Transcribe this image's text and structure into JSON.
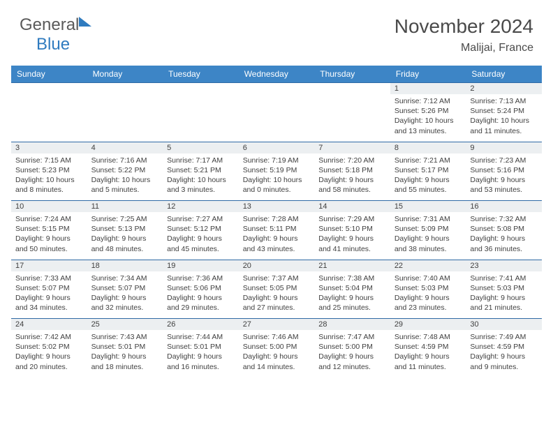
{
  "brand": {
    "part1": "General",
    "part2": "Blue"
  },
  "title": "November 2024",
  "location": "Malijai, France",
  "colors": {
    "header_bg": "#3d85c6",
    "header_text": "#ffffff",
    "daynum_bg": "#eceff1",
    "border": "#2f6aa5",
    "text": "#404040",
    "brand_gray": "#5a5a5a",
    "brand_blue": "#2f7bbf"
  },
  "weekdays": [
    "Sunday",
    "Monday",
    "Tuesday",
    "Wednesday",
    "Thursday",
    "Friday",
    "Saturday"
  ],
  "weeks": [
    [
      null,
      null,
      null,
      null,
      null,
      {
        "n": "1",
        "sr": "Sunrise: 7:12 AM",
        "ss": "Sunset: 5:26 PM",
        "dl": "Daylight: 10 hours and 13 minutes."
      },
      {
        "n": "2",
        "sr": "Sunrise: 7:13 AM",
        "ss": "Sunset: 5:24 PM",
        "dl": "Daylight: 10 hours and 11 minutes."
      }
    ],
    [
      {
        "n": "3",
        "sr": "Sunrise: 7:15 AM",
        "ss": "Sunset: 5:23 PM",
        "dl": "Daylight: 10 hours and 8 minutes."
      },
      {
        "n": "4",
        "sr": "Sunrise: 7:16 AM",
        "ss": "Sunset: 5:22 PM",
        "dl": "Daylight: 10 hours and 5 minutes."
      },
      {
        "n": "5",
        "sr": "Sunrise: 7:17 AM",
        "ss": "Sunset: 5:21 PM",
        "dl": "Daylight: 10 hours and 3 minutes."
      },
      {
        "n": "6",
        "sr": "Sunrise: 7:19 AM",
        "ss": "Sunset: 5:19 PM",
        "dl": "Daylight: 10 hours and 0 minutes."
      },
      {
        "n": "7",
        "sr": "Sunrise: 7:20 AM",
        "ss": "Sunset: 5:18 PM",
        "dl": "Daylight: 9 hours and 58 minutes."
      },
      {
        "n": "8",
        "sr": "Sunrise: 7:21 AM",
        "ss": "Sunset: 5:17 PM",
        "dl": "Daylight: 9 hours and 55 minutes."
      },
      {
        "n": "9",
        "sr": "Sunrise: 7:23 AM",
        "ss": "Sunset: 5:16 PM",
        "dl": "Daylight: 9 hours and 53 minutes."
      }
    ],
    [
      {
        "n": "10",
        "sr": "Sunrise: 7:24 AM",
        "ss": "Sunset: 5:15 PM",
        "dl": "Daylight: 9 hours and 50 minutes."
      },
      {
        "n": "11",
        "sr": "Sunrise: 7:25 AM",
        "ss": "Sunset: 5:13 PM",
        "dl": "Daylight: 9 hours and 48 minutes."
      },
      {
        "n": "12",
        "sr": "Sunrise: 7:27 AM",
        "ss": "Sunset: 5:12 PM",
        "dl": "Daylight: 9 hours and 45 minutes."
      },
      {
        "n": "13",
        "sr": "Sunrise: 7:28 AM",
        "ss": "Sunset: 5:11 PM",
        "dl": "Daylight: 9 hours and 43 minutes."
      },
      {
        "n": "14",
        "sr": "Sunrise: 7:29 AM",
        "ss": "Sunset: 5:10 PM",
        "dl": "Daylight: 9 hours and 41 minutes."
      },
      {
        "n": "15",
        "sr": "Sunrise: 7:31 AM",
        "ss": "Sunset: 5:09 PM",
        "dl": "Daylight: 9 hours and 38 minutes."
      },
      {
        "n": "16",
        "sr": "Sunrise: 7:32 AM",
        "ss": "Sunset: 5:08 PM",
        "dl": "Daylight: 9 hours and 36 minutes."
      }
    ],
    [
      {
        "n": "17",
        "sr": "Sunrise: 7:33 AM",
        "ss": "Sunset: 5:07 PM",
        "dl": "Daylight: 9 hours and 34 minutes."
      },
      {
        "n": "18",
        "sr": "Sunrise: 7:34 AM",
        "ss": "Sunset: 5:07 PM",
        "dl": "Daylight: 9 hours and 32 minutes."
      },
      {
        "n": "19",
        "sr": "Sunrise: 7:36 AM",
        "ss": "Sunset: 5:06 PM",
        "dl": "Daylight: 9 hours and 29 minutes."
      },
      {
        "n": "20",
        "sr": "Sunrise: 7:37 AM",
        "ss": "Sunset: 5:05 PM",
        "dl": "Daylight: 9 hours and 27 minutes."
      },
      {
        "n": "21",
        "sr": "Sunrise: 7:38 AM",
        "ss": "Sunset: 5:04 PM",
        "dl": "Daylight: 9 hours and 25 minutes."
      },
      {
        "n": "22",
        "sr": "Sunrise: 7:40 AM",
        "ss": "Sunset: 5:03 PM",
        "dl": "Daylight: 9 hours and 23 minutes."
      },
      {
        "n": "23",
        "sr": "Sunrise: 7:41 AM",
        "ss": "Sunset: 5:03 PM",
        "dl": "Daylight: 9 hours and 21 minutes."
      }
    ],
    [
      {
        "n": "24",
        "sr": "Sunrise: 7:42 AM",
        "ss": "Sunset: 5:02 PM",
        "dl": "Daylight: 9 hours and 20 minutes."
      },
      {
        "n": "25",
        "sr": "Sunrise: 7:43 AM",
        "ss": "Sunset: 5:01 PM",
        "dl": "Daylight: 9 hours and 18 minutes."
      },
      {
        "n": "26",
        "sr": "Sunrise: 7:44 AM",
        "ss": "Sunset: 5:01 PM",
        "dl": "Daylight: 9 hours and 16 minutes."
      },
      {
        "n": "27",
        "sr": "Sunrise: 7:46 AM",
        "ss": "Sunset: 5:00 PM",
        "dl": "Daylight: 9 hours and 14 minutes."
      },
      {
        "n": "28",
        "sr": "Sunrise: 7:47 AM",
        "ss": "Sunset: 5:00 PM",
        "dl": "Daylight: 9 hours and 12 minutes."
      },
      {
        "n": "29",
        "sr": "Sunrise: 7:48 AM",
        "ss": "Sunset: 4:59 PM",
        "dl": "Daylight: 9 hours and 11 minutes."
      },
      {
        "n": "30",
        "sr": "Sunrise: 7:49 AM",
        "ss": "Sunset: 4:59 PM",
        "dl": "Daylight: 9 hours and 9 minutes."
      }
    ]
  ]
}
